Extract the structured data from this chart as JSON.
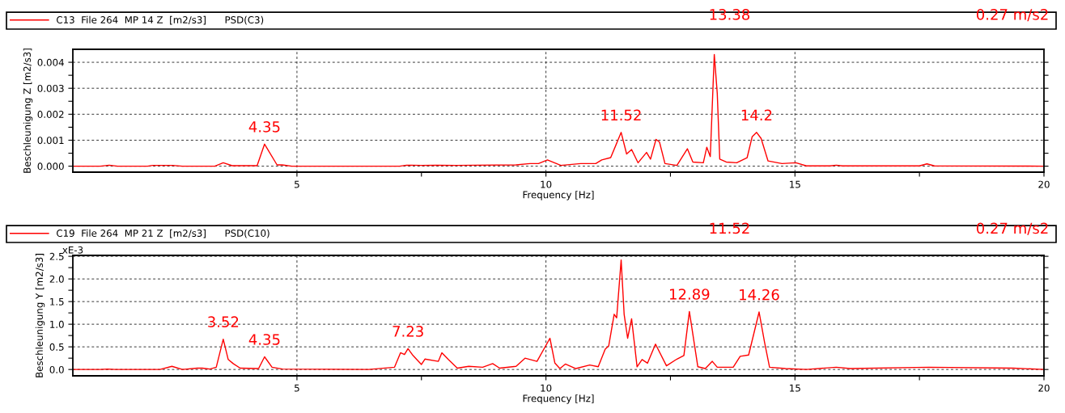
{
  "chart_data": [
    {
      "type": "line",
      "xlabel": "Frequency [Hz]",
      "ylabel": "Beschleunigung Z [m2/s3]",
      "legend": "top",
      "grid": true,
      "xlim": [
        0.5,
        20
      ],
      "xticks": [
        5,
        {
          "value": 7.5,
          "label": null
        },
        10,
        {
          "value": 12.5,
          "label": null
        },
        15,
        {
          "value": 17.5,
          "label": null
        },
        20
      ],
      "ylim": [
        -0.00023,
        0.0045
      ],
      "yticks": [
        {
          "value": 0,
          "label": "0.000"
        },
        {
          "value": 0.0005,
          "label": null
        },
        {
          "value": 0.001,
          "label": "0.001"
        },
        {
          "value": 0.0015,
          "label": null
        },
        {
          "value": 0.002,
          "label": "0.002"
        },
        {
          "value": 0.0025,
          "label": null
        },
        {
          "value": 0.003,
          "label": "0.003"
        },
        {
          "value": 0.0035,
          "label": null
        },
        {
          "value": 0.004,
          "label": "0.004"
        }
      ],
      "annotations": [
        "13.38",
        "0.27 m/s2",
        {
          "text": "4.35",
          "x": 4.35,
          "y": 0.00085
        },
        {
          "text": "11.52",
          "x": 11.51,
          "y": 0.0013
        },
        {
          "text": "14.2",
          "x": 14.23,
          "y": 0.0013
        }
      ],
      "series": [
        {
          "name": "C13  File 264  MP 14 Z  [m2/s3]      PSD(C3)",
          "color": "#ff0000",
          "x": [
            0.5,
            1.05,
            1.23,
            1.4,
            2.0,
            2.1,
            2.3,
            2.5,
            2.7,
            3.35,
            3.52,
            3.7,
            4.2,
            4.35,
            4.6,
            4.7,
            4.9,
            7.06,
            7.2,
            7.5,
            7.8,
            8.2,
            8.6,
            9.4,
            9.68,
            9.85,
            10.03,
            10.3,
            10.7,
            11.0,
            11.12,
            11.3,
            11.51,
            11.62,
            11.72,
            11.85,
            12.02,
            12.1,
            12.21,
            12.28,
            12.39,
            12.63,
            12.84,
            12.95,
            13.16,
            13.23,
            13.3,
            13.38,
            13.44,
            13.49,
            13.62,
            13.83,
            14.04,
            14.14,
            14.23,
            14.32,
            14.46,
            14.74,
            15.02,
            15.23,
            15.7,
            15.83,
            15.95,
            17.5,
            17.65,
            17.8,
            20
          ],
          "values": [
            0,
            0,
            4e-05,
            0,
            0,
            3e-05,
            3e-05,
            3e-05,
            0,
            0,
            0.00013,
            2e-05,
            2e-05,
            0.00085,
            5e-05,
            5e-05,
            0,
            0,
            4e-05,
            3e-05,
            4e-05,
            3e-05,
            4e-05,
            5e-05,
            0.0001,
            0.0001,
            0.00024,
            3e-05,
            0.0001,
            0.0001,
            0.00024,
            0.00033,
            0.0013,
            0.00047,
            0.00064,
            0.00013,
            0.00053,
            0.00027,
            0.00103,
            0.00093,
            0.0001,
            3e-05,
            0.00067,
            0.00016,
            0.00013,
            0.00073,
            0.00037,
            0.0043,
            0.0028,
            0.00027,
            0.00016,
            0.00013,
            0.00033,
            0.00113,
            0.0013,
            0.00107,
            0.0002,
            0.0001,
            0.00013,
            1e-05,
            1e-05,
            4e-05,
            1e-05,
            1e-05,
            9e-05,
            1e-05,
            0
          ]
        }
      ]
    },
    {
      "type": "line",
      "xlabel": "Frequency [Hz]",
      "ylabel": "Beschleunigung Y [m2/s3]",
      "legend": "top",
      "grid": true,
      "xlim": [
        0.5,
        20
      ],
      "xticks": [
        5,
        {
          "value": 7.5,
          "label": null
        },
        10,
        {
          "value": 12.5,
          "label": null
        },
        15,
        {
          "value": 17.5,
          "label": null
        },
        20
      ],
      "ylim": [
        -0.14,
        2.52
      ],
      "yticks": [
        {
          "value": 0,
          "label": "0.0"
        },
        {
          "value": 0.25,
          "label": null
        },
        0.5,
        {
          "value": 0.75,
          "label": null
        },
        {
          "value": 1,
          "label": "1.0"
        },
        {
          "value": 1.25,
          "label": null
        },
        1.5,
        {
          "value": 1.75,
          "label": null
        },
        {
          "value": 2,
          "label": "2.0"
        },
        {
          "value": 2.25,
          "label": null
        },
        2.5
      ],
      "annotations": [
        "11.52",
        "0.27 m/s2",
        "xE-3",
        {
          "text": "3.52",
          "x": 3.52,
          "y": 0.67
        },
        {
          "text": "4.35",
          "x": 4.35,
          "y": 0.28
        },
        {
          "text": "7.23",
          "x": 7.23,
          "y": 0.46
        },
        {
          "text": "12.89",
          "x": 12.88,
          "y": 1.28
        },
        {
          "text": "14.26",
          "x": 14.28,
          "y": 1.27
        }
      ],
      "series": [
        {
          "name": "C19  File 264  MP 21 Z  [m2/s3]      PSD(C10)",
          "color": "#ff0000",
          "x": [
            0.5,
            1.05,
            1.2,
            1.35,
            2.25,
            2.49,
            2.7,
            3.0,
            3.1,
            3.25,
            3.38,
            3.52,
            3.62,
            3.72,
            3.86,
            4.23,
            4.35,
            4.5,
            4.71,
            6.44,
            6.96,
            7.08,
            7.16,
            7.23,
            7.33,
            7.5,
            7.57,
            7.84,
            7.91,
            8.04,
            8.22,
            8.45,
            8.73,
            8.93,
            9.07,
            9.4,
            9.58,
            9.82,
            10.08,
            10.18,
            10.28,
            10.39,
            10.6,
            10.88,
            11.05,
            11.19,
            11.26,
            11.37,
            11.42,
            11.51,
            11.57,
            11.64,
            11.72,
            11.83,
            11.93,
            12.04,
            12.2,
            12.42,
            12.63,
            12.77,
            12.88,
            13.05,
            13.2,
            13.34,
            13.44,
            13.76,
            13.9,
            14.07,
            14.28,
            14.39,
            14.49,
            14.81,
            15.23,
            15.83,
            16.11,
            17.69,
            19.38,
            20
          ],
          "values": [
            0,
            0,
            0.01,
            0,
            0,
            0.07,
            0,
            0.03,
            0.03,
            0.01,
            0.05,
            0.67,
            0.22,
            0.13,
            0.03,
            0.02,
            0.28,
            0.05,
            0.01,
            0,
            0.05,
            0.37,
            0.33,
            0.46,
            0.31,
            0.11,
            0.23,
            0.18,
            0.37,
            0.22,
            0.03,
            0.07,
            0.05,
            0.13,
            0.03,
            0.07,
            0.25,
            0.18,
            0.69,
            0.14,
            0.02,
            0.12,
            0.02,
            0.1,
            0.06,
            0.45,
            0.52,
            1.22,
            1.14,
            2.42,
            1.22,
            0.69,
            1.12,
            0.06,
            0.22,
            0.14,
            0.56,
            0.08,
            0.23,
            0.31,
            1.28,
            0.06,
            0.02,
            0.18,
            0.05,
            0.05,
            0.29,
            0.32,
            1.27,
            0.6,
            0.05,
            0.02,
            0,
            0.05,
            0.02,
            0.05,
            0.03,
            0
          ]
        }
      ]
    }
  ]
}
